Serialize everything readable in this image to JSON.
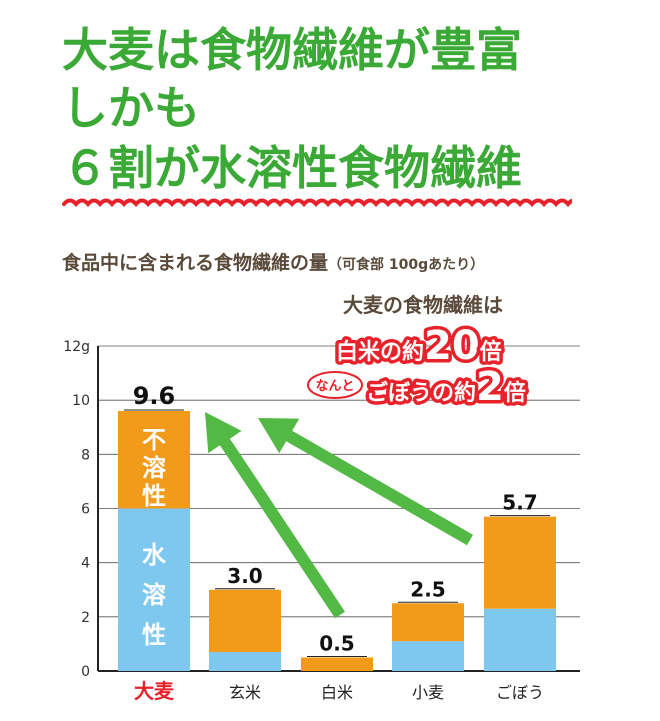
{
  "headline": {
    "line1": "大麦は食物繊維が豊富",
    "line2": "しかも",
    "line3": "６割が水溶性食物繊維"
  },
  "subtitle": {
    "main": "食品中に含まれる食物繊維の量",
    "note": "（可食部 100gあたり）"
  },
  "callout": {
    "heading": "大麦の食物繊維は",
    "badge1_pre": "白米の約",
    "badge1_num": "20",
    "badge1_suf": "倍",
    "nanto": "なんと",
    "badge2_pre": "ごぼうの約",
    "badge2_num": "2",
    "badge2_suf": "倍"
  },
  "colors": {
    "headline": "#3aa935",
    "wave": "#e8222a",
    "soluble": "#7ec8ef",
    "insoluble": "#f29a1a",
    "arrow": "#52b945",
    "badge": "#e8222a",
    "highlight_label": "#e8222a"
  },
  "chart_data": {
    "type": "bar",
    "stacked": true,
    "categories": [
      "大麦",
      "玄米",
      "白米",
      "小麦",
      "ごぼう"
    ],
    "series": [
      {
        "name": "水溶性",
        "values": [
          6.0,
          0.7,
          0.0,
          1.1,
          2.3
        ]
      },
      {
        "name": "不溶性",
        "values": [
          3.6,
          2.3,
          0.5,
          1.4,
          3.4
        ]
      }
    ],
    "totals": [
      "9.6",
      "3.0",
      "0.5",
      "2.5",
      "5.7"
    ],
    "segment_labels": {
      "soluble": "水溶性",
      "insoluble": "不溶性"
    },
    "y_ticks": [
      "0",
      "2",
      "4",
      "6",
      "8",
      "10",
      "12g"
    ],
    "ylim": [
      0,
      12
    ],
    "grid": true,
    "highlight_category": "大麦"
  }
}
